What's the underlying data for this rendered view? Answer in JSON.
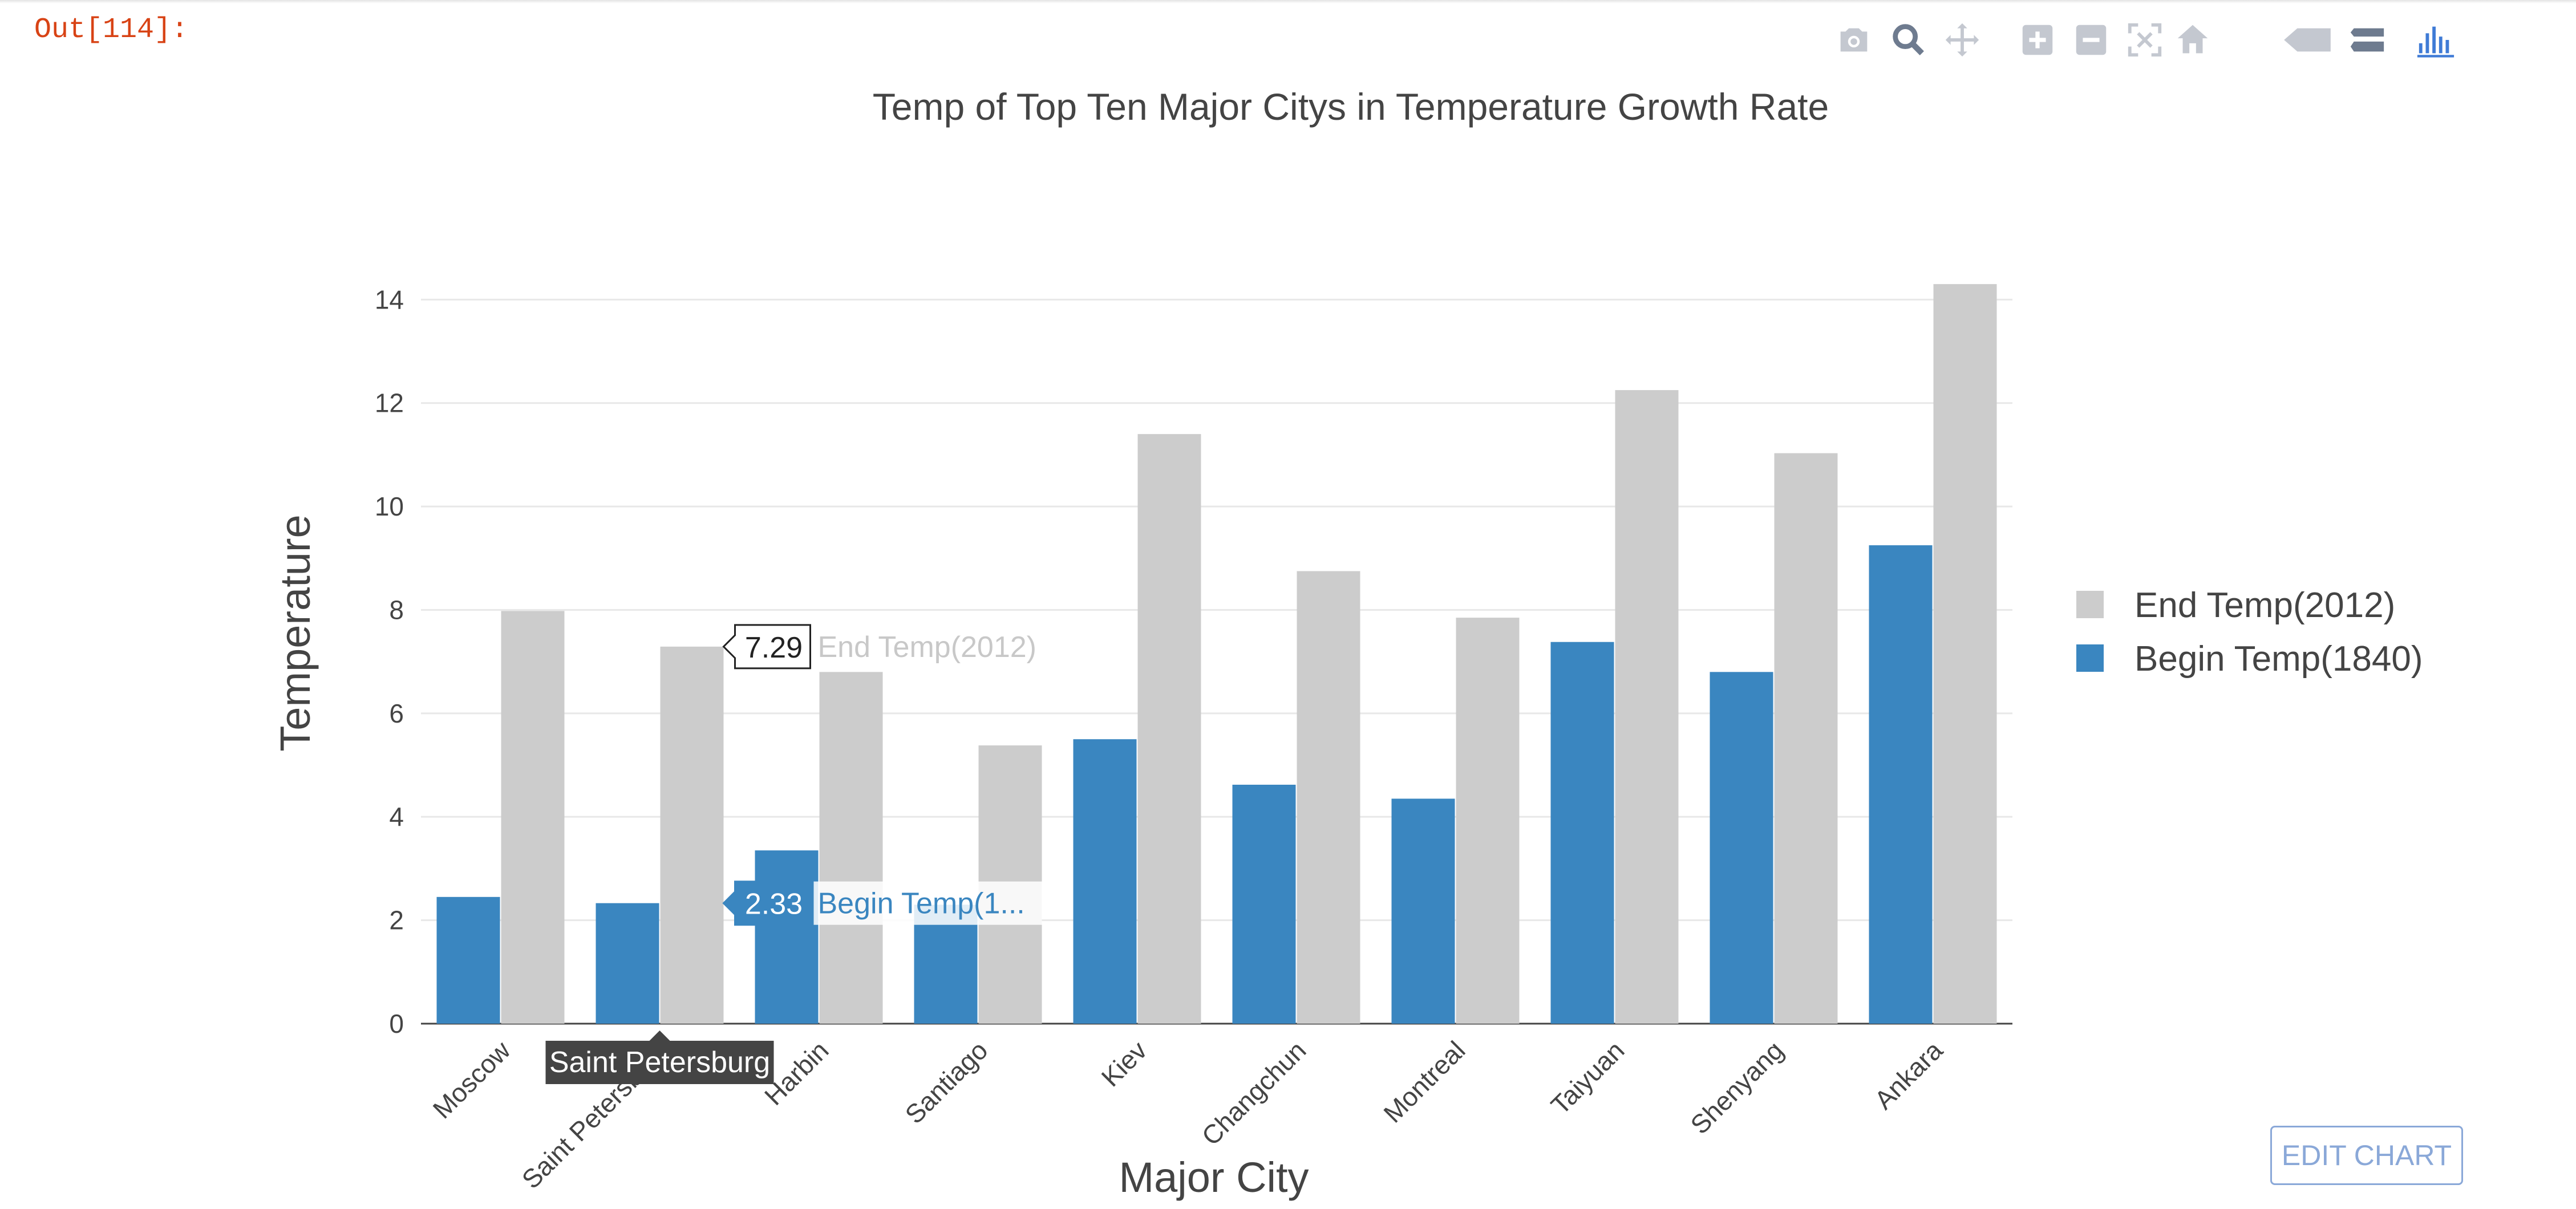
{
  "prompt": {
    "label": "Out[114]:"
  },
  "modebar": {
    "icons": [
      "camera-icon",
      "zoom-icon",
      "pan-icon",
      "zoom-in-icon",
      "zoom-out-icon",
      "autoscale-icon",
      "home-icon",
      "closest-hover-icon",
      "compare-hover-icon",
      "plotly-logo-icon"
    ]
  },
  "edit_button": {
    "label": "EDIT CHART"
  },
  "chart_data": {
    "type": "bar",
    "title": "Temp of Top Ten Major Citys in Temperature Growth Rate",
    "xlabel": "Major City",
    "ylabel": "Temperature",
    "categories": [
      "Moscow",
      "Saint Petersburg",
      "Harbin",
      "Santiago",
      "Kiev",
      "Changchun",
      "Montreal",
      "Taiyuan",
      "Shenyang",
      "Ankara"
    ],
    "series": [
      {
        "name": "Begin Temp(1840)",
        "color": "#3a86c0",
        "values": [
          2.45,
          2.33,
          3.35,
          2.3,
          5.5,
          4.62,
          4.35,
          7.38,
          6.8,
          9.25
        ]
      },
      {
        "name": "End Temp(2012)",
        "color": "#cccccc",
        "values": [
          7.98,
          7.29,
          6.8,
          5.38,
          11.4,
          8.75,
          7.85,
          12.25,
          11.03,
          14.3
        ]
      }
    ],
    "legend_order": [
      "End Temp(2012)",
      "Begin Temp(1840)"
    ],
    "ylim": [
      0,
      14.5
    ],
    "yticks": [
      0,
      2,
      4,
      6,
      8,
      10,
      12,
      14
    ],
    "grid": true,
    "legend_position": "right",
    "hover": {
      "category": "Saint Petersburg",
      "category_label": "Saint Petersburg",
      "labels": [
        {
          "series": "End Temp(2012)",
          "value": "7.29",
          "name": "End Temp(2012)"
        },
        {
          "series": "Begin Temp(1840)",
          "value": "2.33",
          "name": "Begin Temp(1..."
        }
      ]
    }
  }
}
